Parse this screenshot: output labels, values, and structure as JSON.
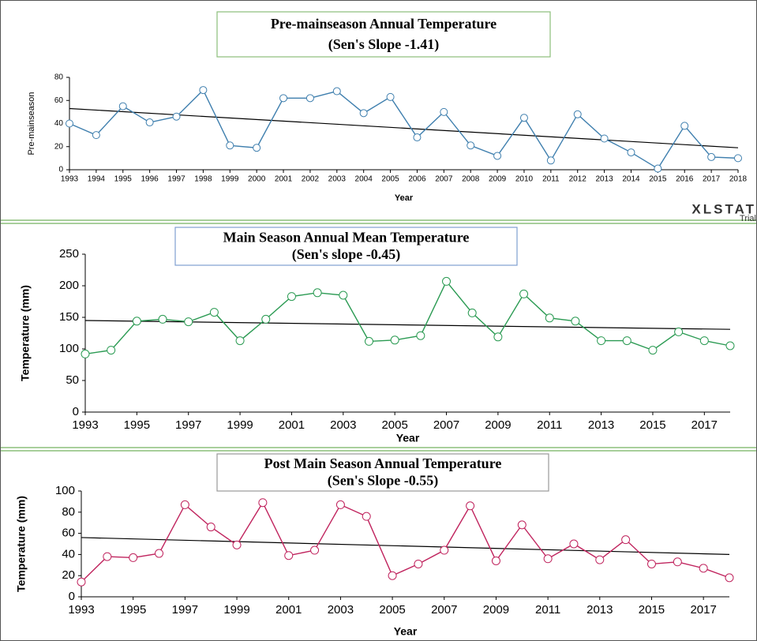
{
  "chart_data": [
    {
      "type": "line",
      "title": "Pre-mainseason Annual Temperature",
      "subtitle": "(Sen's Slope -1.41)",
      "y_label": "Pre-mainseason",
      "x_label": "Year",
      "watermark": "XLSTAT",
      "watermark_sub": "Trial",
      "x": [
        1993,
        1994,
        1995,
        1996,
        1997,
        1998,
        1999,
        2000,
        2001,
        2002,
        2003,
        2004,
        2005,
        2006,
        2007,
        2008,
        2009,
        2010,
        2011,
        2012,
        2013,
        2014,
        2015,
        2016,
        2017,
        2018
      ],
      "series": [
        {
          "color": "#3f7fae",
          "values": [
            40,
            30,
            55,
            41,
            46,
            69,
            21,
            19,
            62,
            62,
            68,
            49,
            63,
            28,
            50,
            21,
            12,
            45,
            8,
            48,
            27,
            15,
            1,
            38,
            11,
            10
          ]
        }
      ],
      "trend": {
        "x": [
          1993,
          2018
        ],
        "values": [
          53,
          19
        ],
        "color": "#000000"
      },
      "xlim": [
        1993,
        2018
      ],
      "xticks": [
        1993,
        1994,
        1995,
        1996,
        1997,
        1998,
        1999,
        2000,
        2001,
        2002,
        2003,
        2004,
        2005,
        2006,
        2007,
        2008,
        2009,
        2010,
        2011,
        2012,
        2013,
        2014,
        2015,
        2016,
        2017,
        2018
      ],
      "ylim": [
        0,
        80
      ],
      "yticks": [
        0,
        20,
        40,
        60,
        80
      ]
    },
    {
      "type": "line",
      "title": "Main Season  Annual Mean Temperature",
      "subtitle": "(Sen's slope -0.45)",
      "y_label": "Temperature (mm)",
      "x_label": "Year",
      "x": [
        1993,
        1994,
        1995,
        1996,
        1997,
        1998,
        1999,
        2000,
        2001,
        2002,
        2003,
        2004,
        2005,
        2006,
        2007,
        2008,
        2009,
        2010,
        2011,
        2012,
        2013,
        2014,
        2015,
        2016,
        2017,
        2018
      ],
      "series": [
        {
          "color": "#2a9a52",
          "values": [
            92,
            98,
            144,
            147,
            143,
            158,
            113,
            147,
            183,
            189,
            185,
            112,
            114,
            121,
            207,
            157,
            119,
            187,
            149,
            144,
            113,
            113,
            98,
            127,
            113,
            105
          ]
        }
      ],
      "trend": {
        "x": [
          1993,
          2018
        ],
        "values": [
          145,
          131
        ],
        "color": "#000000"
      },
      "xlim": [
        1993,
        2018
      ],
      "xticks": [
        1993,
        1995,
        1997,
        1999,
        2001,
        2003,
        2005,
        2007,
        2009,
        2011,
        2013,
        2015,
        2017
      ],
      "ylim": [
        0,
        250
      ],
      "yticks": [
        0,
        50,
        100,
        150,
        200,
        250
      ]
    },
    {
      "type": "line",
      "title": "Post Main Season  Annual Temperature",
      "subtitle": "(Sen's Slope -0.55)",
      "y_label": "Temperature (mm)",
      "x_label": "Year",
      "x": [
        1993,
        1994,
        1995,
        1996,
        1997,
        1998,
        1999,
        2000,
        2001,
        2002,
        2003,
        2004,
        2005,
        2006,
        2007,
        2008,
        2009,
        2010,
        2011,
        2012,
        2013,
        2014,
        2015,
        2016,
        2017,
        2018
      ],
      "series": [
        {
          "color": "#c0245e",
          "values": [
            14,
            38,
            37,
            41,
            87,
            66,
            49,
            89,
            39,
            44,
            87,
            76,
            20,
            31,
            44,
            86,
            34,
            68,
            36,
            50,
            35,
            54,
            31,
            33,
            27,
            18
          ]
        }
      ],
      "trend": {
        "x": [
          1993,
          2018
        ],
        "values": [
          56,
          40
        ],
        "color": "#000000"
      },
      "xlim": [
        1993,
        2018
      ],
      "xticks": [
        1993,
        1995,
        1997,
        1999,
        2001,
        2003,
        2005,
        2007,
        2009,
        2011,
        2013,
        2015,
        2017
      ],
      "ylim": [
        0,
        100
      ],
      "yticks": [
        0,
        20,
        40,
        60,
        80,
        100
      ]
    }
  ]
}
